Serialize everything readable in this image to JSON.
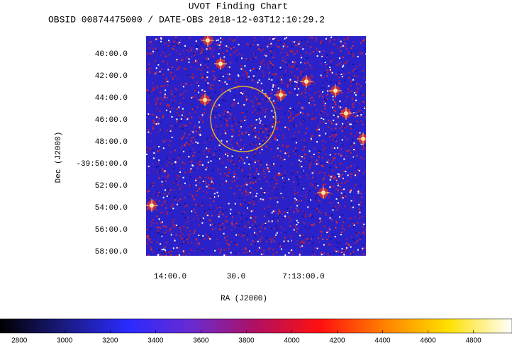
{
  "title": "UVOT Finding Chart",
  "subtitle": "OBSID 00874475000 / DATE-OBS 2018-12-03T12:10:29.2",
  "image": {
    "xlabel": "RA (J2000)",
    "ylabel": "Dec (J2000)",
    "xtick_labels": [
      "14:00.0",
      "30.0",
      "7:13:00.0"
    ],
    "ytick_labels": [
      "40:00.0",
      "42:00.0",
      "44:00.0",
      "46:00.0",
      "48:00.0",
      "-39:50:00.0",
      "52:00.0",
      "54:00.0",
      "56:00.0",
      "58:00.0"
    ]
  },
  "colorbar": {
    "lim": [
      2715,
      4970
    ],
    "ticks": [
      2800,
      3000,
      3200,
      3400,
      3600,
      3800,
      4000,
      4200,
      4400,
      4600,
      4800
    ],
    "colors": [
      "#000000",
      "#1a1a80",
      "#2a2aff",
      "#6a2ad0",
      "#b01060",
      "#ff1010",
      "#ff8000",
      "#ffe000",
      "#ffffff"
    ]
  }
}
